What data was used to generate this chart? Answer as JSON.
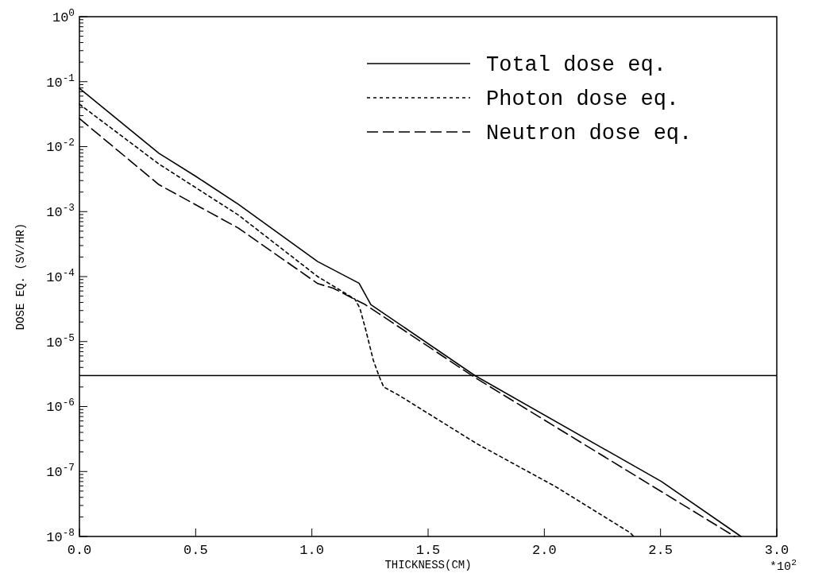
{
  "chart_data": {
    "type": "line",
    "xlabel": "THICKNESS(CM)",
    "ylabel": "DOSE EQ. (SV/HR)",
    "annotations": [
      "*10$^{2}$"
    ],
    "log": "y",
    "grid": false,
    "legend": "top right",
    "xlim": [
      0,
      3
    ],
    "xticks": [
      {
        "value": 0,
        "label": "0.0"
      },
      {
        "value": 0.5,
        "label": "0.5"
      },
      {
        "value": 1,
        "label": "1.0"
      },
      {
        "value": 1.5,
        "label": "1.5"
      },
      {
        "value": 2,
        "label": "2.0"
      },
      {
        "value": 2.5,
        "label": "2.5"
      },
      {
        "value": 3,
        "label": "3.0"
      }
    ],
    "ylim": [
      1e-08,
      1
    ],
    "yticks": [
      {
        "value": 1,
        "label": "10$^{0}$"
      },
      {
        "value": 0.1,
        "label": "10$^{-1}$"
      },
      {
        "value": 0.01,
        "label": "10$^{-2}$"
      },
      {
        "value": 0.001,
        "label": "10$^{-3}$"
      },
      {
        "value": 0.0001,
        "label": "10$^{-4}$"
      },
      {
        "value": 1e-05,
        "label": "10$^{-5}$"
      },
      {
        "value": 1e-06,
        "label": "10$^{-6}$"
      },
      {
        "value": 1e-07,
        "label": "10$^{-7}$"
      },
      {
        "value": 1e-08,
        "label": "10$^{-8}$"
      }
    ],
    "ref_lines": [
      {
        "axis": "y",
        "value": 3e-06,
        "color": "#000000",
        "line_style": "solid"
      }
    ],
    "series": [
      {
        "name": "Total dose eq.",
        "color": "#000000",
        "line_style": "solid",
        "x": [
          0,
          0.342,
          0.5,
          0.683,
          1.025,
          1.203,
          1.254,
          1.701,
          2.504,
          2.846
        ],
        "values": [
          0.079,
          0.0079,
          0.0035,
          0.0013,
          0.00017,
          7.9e-05,
          3.7e-05,
          3e-06,
          7e-08,
          1e-08
        ]
      },
      {
        "name": "Photon dose eq.",
        "color": "#000000",
        "line_style": "dotted",
        "x": [
          0,
          0.342,
          0.683,
          1.025,
          1.185,
          1.206,
          1.23,
          1.264,
          1.288,
          1.309,
          1.373,
          1.708,
          2.05,
          2.368,
          2.385
        ],
        "values": [
          0.045,
          0.0054,
          0.00089,
          0.0001,
          4.5e-05,
          3.3e-05,
          1.6e-05,
          5.2e-06,
          3e-06,
          2e-06,
          1.5e-06,
          2.7e-07,
          5.8e-08,
          1.15e-08,
          1e-08
        ]
      },
      {
        "name": "Neutron dose eq.",
        "color": "#000000",
        "line_style": "dashed",
        "x": [
          0,
          0.342,
          0.683,
          1.025,
          1.093,
          1.172,
          1.23,
          1.701,
          2.819
        ],
        "values": [
          0.027,
          0.0026,
          0.00056,
          7.8e-05,
          6.6e-05,
          4.7e-05,
          3.7e-05,
          2.8e-06,
          1e-08
        ]
      }
    ]
  }
}
